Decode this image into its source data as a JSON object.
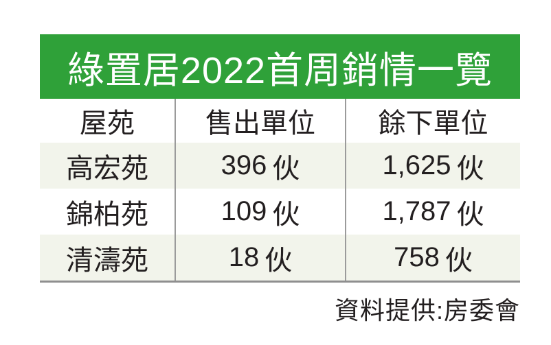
{
  "title_banner": {
    "text": "綠置居2022首周銷情一覽",
    "bg_color": "#2FA139",
    "text_color": "#FFFFFF"
  },
  "table": {
    "headers": [
      "屋苑",
      "售出單位",
      "餘下單位"
    ],
    "rows": [
      {
        "estate": "高宏苑",
        "sold": "396",
        "remaining": "1,625",
        "unit": "伙"
      },
      {
        "estate": "錦柏苑",
        "sold": "109",
        "remaining": "1,787",
        "unit": "伙"
      },
      {
        "estate": "清濤苑",
        "sold": "18",
        "remaining": "758",
        "unit": "伙"
      }
    ],
    "stripe_color": "#F2F4EB",
    "divider_color": "#9B9B9B",
    "bottom_rule_color": "#8F8F8F",
    "text_color": "#231F20"
  },
  "footer": {
    "source_credit": "資料提供:房委會"
  },
  "chart_data": {
    "type": "table",
    "title": "綠置居2022首周銷情一覽",
    "columns": [
      "屋苑",
      "售出單位",
      "餘下單位"
    ],
    "rows": [
      [
        "高宏苑",
        "396伙",
        "1,625伙"
      ],
      [
        "錦柏苑",
        "109伙",
        "1,787伙"
      ],
      [
        "清濤苑",
        "18伙",
        "758伙"
      ]
    ],
    "units_sold": [
      396,
      109,
      18
    ],
    "units_remaining": [
      1625,
      1787,
      758
    ],
    "source": "資料提供:房委會"
  }
}
